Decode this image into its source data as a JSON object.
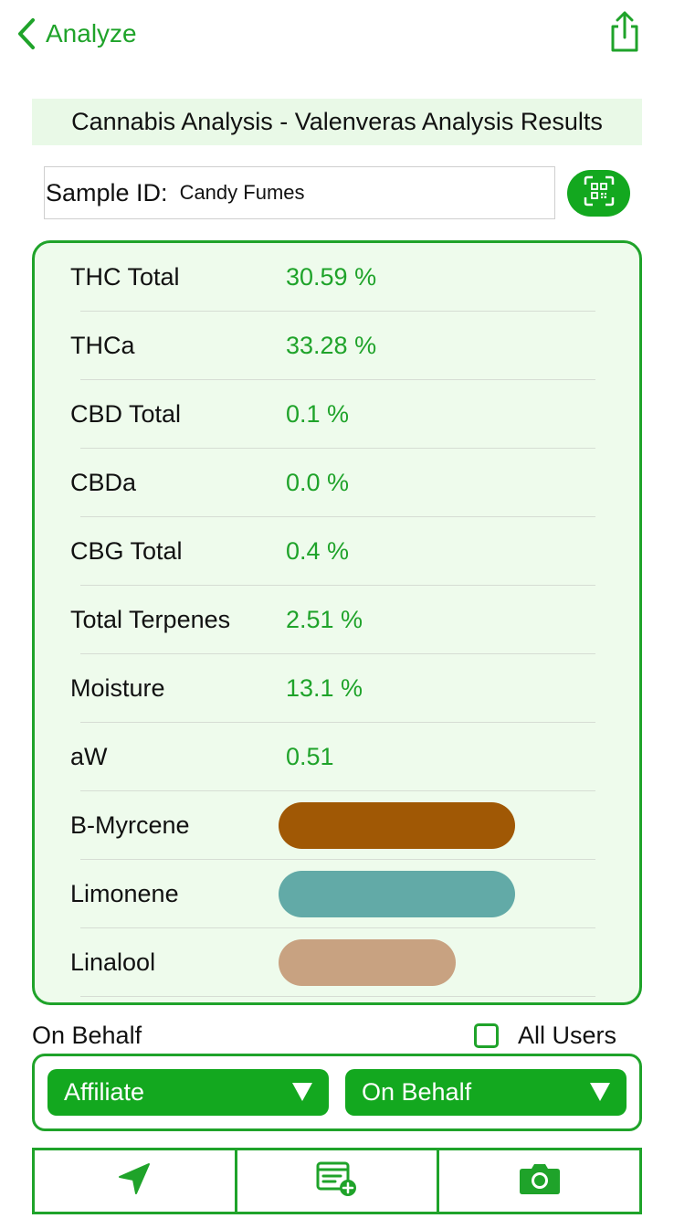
{
  "nav": {
    "back_label": "Analyze",
    "back_icon": "chevron-left-icon",
    "share_icon": "share-icon"
  },
  "title": "Cannabis Analysis - Valenveras Analysis Results",
  "sample": {
    "label": "Sample ID:",
    "value": "Candy Fumes",
    "scan_icon": "qr-scan-icon"
  },
  "results": [
    {
      "label": "THC Total",
      "value": "30.59 %"
    },
    {
      "label": "THCa",
      "value": "33.28 %"
    },
    {
      "label": "CBD Total",
      "value": "0.1 %"
    },
    {
      "label": "CBDa",
      "value": "0.0 %"
    },
    {
      "label": "CBG Total",
      "value": "0.4 %"
    },
    {
      "label": "Total Terpenes",
      "value": "2.51 %"
    },
    {
      "label": "Moisture",
      "value": "13.1 %"
    },
    {
      "label": "aW",
      "value": "0.51"
    }
  ],
  "terpenes": [
    {
      "label": "B-Myrcene",
      "color": "#a05805",
      "level": 1.0
    },
    {
      "label": "Limonene",
      "color": "#62aaa7",
      "level": 1.0
    },
    {
      "label": "Linalool",
      "color": "#c8a281",
      "level": 0.75
    }
  ],
  "behalf": {
    "label": "On Behalf",
    "all_users_label": "All Users",
    "all_users_checked": false,
    "affiliate_select": "Affiliate",
    "behalf_select": "On Behalf"
  },
  "toolbar": {
    "location_icon": "location-arrow-icon",
    "form_icon": "add-form-icon",
    "camera_icon": "camera-icon"
  },
  "colors": {
    "accent": "#1fa32a",
    "button": "#13a81f",
    "panel_bg": "#eefbec",
    "title_bg": "#e9f9e7"
  }
}
